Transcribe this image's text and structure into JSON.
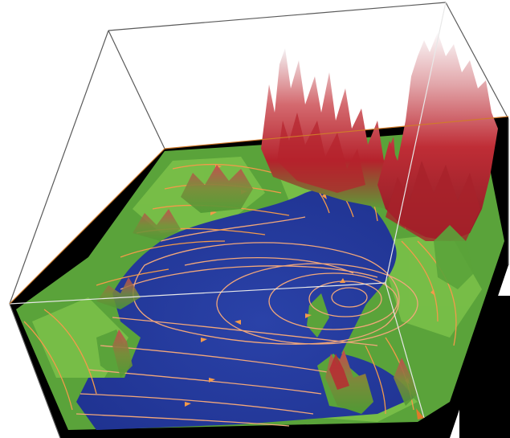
{
  "scene": {
    "subject": "terrain-with-flow-streamlines",
    "colors": {
      "background": "#ffffff",
      "water": "#243a9e",
      "water_deep": "#1e2f8a",
      "lowland": "#5aa33a",
      "lowland_light": "#7cc24a",
      "highland": "#b92a32",
      "highland_dark": "#8d1d25",
      "peak": "#f1eef1",
      "streamline": "#f39a4a",
      "streamline_on_water": "#f2a77a",
      "box_edge": "#5a5a5a",
      "box_edge_light": "#dcdcdc",
      "axis": "#e07a2a",
      "shadow": "#000000"
    }
  }
}
